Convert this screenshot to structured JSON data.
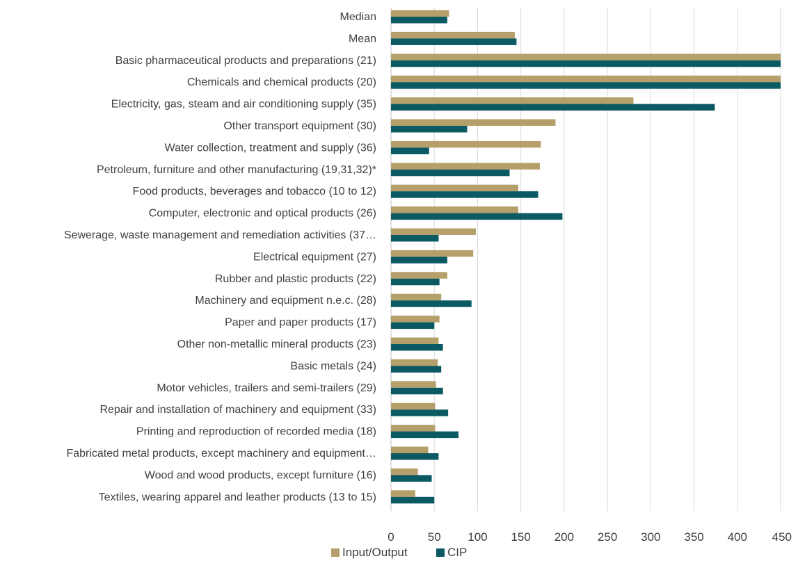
{
  "chart_data": {
    "type": "bar",
    "orientation": "horizontal",
    "categories": [
      "Median",
      "Mean",
      "Basic pharmaceutical products and preparations (21)",
      "Chemicals and chemical products (20)",
      "Electricity, gas, steam and air conditioning supply (35)",
      "Other transport equipment (30)",
      "Water collection, treatment and supply (36)",
      "Petroleum, furniture and other manufacturing (19,31,32)*",
      "Food products, beverages and tobacco (10 to 12)",
      "Computer, electronic and optical products (26)",
      "Sewerage, waste management and remediation activities (37…",
      "Electrical equipment (27)",
      "Rubber and plastic products (22)",
      "Machinery and equipment n.e.c. (28)",
      "Paper and paper products (17)",
      "Other non-metallic mineral products (23)",
      "Basic metals (24)",
      "Motor vehicles, trailers and semi-trailers (29)",
      "Repair and installation of machinery and equipment (33)",
      "Printing and reproduction of recorded media (18)",
      "Fabricated metal products, except machinery and equipment…",
      "Wood and wood products, except furniture (16)",
      "Textiles, wearing apparel and leather products (13 to 15)"
    ],
    "series": [
      {
        "name": "Input/Output",
        "color": "#b5a06b",
        "values": [
          67,
          143,
          452,
          452,
          280,
          190,
          173,
          172,
          147,
          147,
          98,
          95,
          65,
          58,
          56,
          55,
          54,
          52,
          51,
          51,
          43,
          31,
          28
        ]
      },
      {
        "name": "CIP",
        "color": "#0b5963",
        "values": [
          65,
          145,
          452,
          452,
          374,
          88,
          44,
          137,
          170,
          198,
          55,
          65,
          56,
          93,
          50,
          60,
          58,
          60,
          66,
          78,
          55,
          47,
          50
        ]
      }
    ],
    "xlim": [
      0,
      450
    ],
    "xticks": [
      "0",
      "50",
      "100",
      "150",
      "200",
      "250",
      "300",
      "350",
      "400",
      "450"
    ],
    "grid": true,
    "legend_position": "bottom"
  }
}
